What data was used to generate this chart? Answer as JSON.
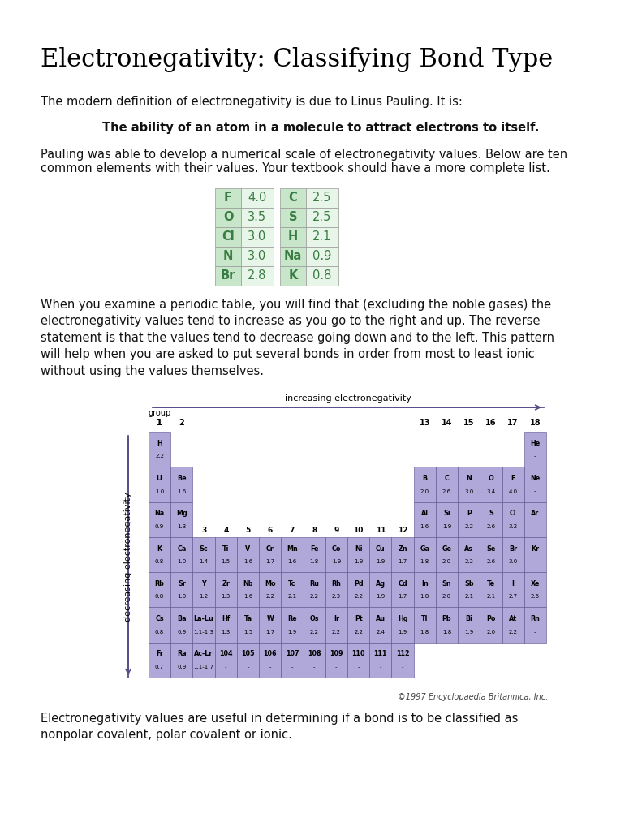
{
  "title": "Electronegativity: Classifying Bond Type",
  "para1": "The modern definition of electronegativity is due to Linus Pauling. It is:",
  "bold_line": "The ability of an atom in a molecule to attract electrons to itself.",
  "para2": "Pauling was able to develop a numerical scale of electronegativity values. Below are ten\ncommon elements with their values. Your textbook should have a more complete list.",
  "table_elements_left": [
    "F",
    "O",
    "Cl",
    "N",
    "Br"
  ],
  "table_values_left": [
    "4.0",
    "3.5",
    "3.0",
    "3.0",
    "2.8"
  ],
  "table_elements_right": [
    "C",
    "S",
    "H",
    "Na",
    "K"
  ],
  "table_values_right": [
    "2.5",
    "2.5",
    "2.1",
    "0.9",
    "0.8"
  ],
  "para3": "When you examine a periodic table, you will find that (excluding the noble gases) the\nelectronegativity values tend to increase as you go to the right and up. The reverse\nstatement is that the values tend to decrease going down and to the left. This pattern\nwill help when you are asked to put several bonds in order from most to least ionic\nwithout using the values themselves.",
  "para4": "Electronegativity values are useful in determining if a bond is to be classified as\nnonpolar covalent, polar covalent or ionic.",
  "green_color": "#3a7d44",
  "table_bg": "#e8f5e9",
  "table_elem_bg": "#c8e6c9",
  "white_bg": "#ffffff",
  "black": "#000000",
  "text_color": "#111111",
  "copyright": "©1997 Encyclopaedia Britannica, Inc.",
  "purple_fill": "#b0a8d8",
  "purple_border": "#5a4e8a",
  "arrow_color": "#5a4e8a",
  "elements": [
    [
      "H",
      "2.2",
      0,
      0
    ],
    [
      "He",
      "-",
      17,
      0
    ],
    [
      "Li",
      "1.0",
      0,
      1
    ],
    [
      "Be",
      "1.6",
      1,
      1
    ],
    [
      "B",
      "2.0",
      12,
      1
    ],
    [
      "C",
      "2.6",
      13,
      1
    ],
    [
      "N",
      "3.0",
      14,
      1
    ],
    [
      "O",
      "3.4",
      15,
      1
    ],
    [
      "F",
      "4.0",
      16,
      1
    ],
    [
      "Ne",
      "-",
      17,
      1
    ],
    [
      "Na",
      "0.9",
      0,
      2
    ],
    [
      "Mg",
      "1.3",
      1,
      2
    ],
    [
      "Al",
      "1.6",
      12,
      2
    ],
    [
      "Si",
      "1.9",
      13,
      2
    ],
    [
      "P",
      "2.2",
      14,
      2
    ],
    [
      "S",
      "2.6",
      15,
      2
    ],
    [
      "Cl",
      "3.2",
      16,
      2
    ],
    [
      "Ar",
      "-",
      17,
      2
    ],
    [
      "K",
      "0.8",
      0,
      3
    ],
    [
      "Ca",
      "1.0",
      1,
      3
    ],
    [
      "Sc",
      "1.4",
      2,
      3
    ],
    [
      "Ti",
      "1.5",
      3,
      3
    ],
    [
      "V",
      "1.6",
      4,
      3
    ],
    [
      "Cr",
      "1.7",
      5,
      3
    ],
    [
      "Mn",
      "1.6",
      6,
      3
    ],
    [
      "Fe",
      "1.8",
      7,
      3
    ],
    [
      "Co",
      "1.9",
      8,
      3
    ],
    [
      "Ni",
      "1.9",
      9,
      3
    ],
    [
      "Cu",
      "1.9",
      10,
      3
    ],
    [
      "Zn",
      "1.7",
      11,
      3
    ],
    [
      "Ga",
      "1.8",
      12,
      3
    ],
    [
      "Ge",
      "2.0",
      13,
      3
    ],
    [
      "As",
      "2.2",
      14,
      3
    ],
    [
      "Se",
      "2.6",
      15,
      3
    ],
    [
      "Br",
      "3.0",
      16,
      3
    ],
    [
      "Kr",
      "-",
      17,
      3
    ],
    [
      "Rb",
      "0.8",
      0,
      4
    ],
    [
      "Sr",
      "1.0",
      1,
      4
    ],
    [
      "Y",
      "1.2",
      2,
      4
    ],
    [
      "Zr",
      "1.3",
      3,
      4
    ],
    [
      "Nb",
      "1.6",
      4,
      4
    ],
    [
      "Mo",
      "2.2",
      5,
      4
    ],
    [
      "Tc",
      "2.1",
      6,
      4
    ],
    [
      "Ru",
      "2.2",
      7,
      4
    ],
    [
      "Rh",
      "2.3",
      8,
      4
    ],
    [
      "Pd",
      "2.2",
      9,
      4
    ],
    [
      "Ag",
      "1.9",
      10,
      4
    ],
    [
      "Cd",
      "1.7",
      11,
      4
    ],
    [
      "In",
      "1.8",
      12,
      4
    ],
    [
      "Sn",
      "2.0",
      13,
      4
    ],
    [
      "Sb",
      "2.1",
      14,
      4
    ],
    [
      "Te",
      "2.1",
      15,
      4
    ],
    [
      "I",
      "2.7",
      16,
      4
    ],
    [
      "Xe",
      "2.6",
      17,
      4
    ],
    [
      "Cs",
      "0.8",
      0,
      5
    ],
    [
      "Ba",
      "0.9",
      1,
      5
    ],
    [
      "La-Lu",
      "1.1-1.3",
      2,
      5
    ],
    [
      "Hf",
      "1.3",
      3,
      5
    ],
    [
      "Ta",
      "1.5",
      4,
      5
    ],
    [
      "W",
      "1.7",
      5,
      5
    ],
    [
      "Re",
      "1.9",
      6,
      5
    ],
    [
      "Os",
      "2.2",
      7,
      5
    ],
    [
      "Ir",
      "2.2",
      8,
      5
    ],
    [
      "Pt",
      "2.2",
      9,
      5
    ],
    [
      "Au",
      "2.4",
      10,
      5
    ],
    [
      "Hg",
      "1.9",
      11,
      5
    ],
    [
      "Tl",
      "1.8",
      12,
      5
    ],
    [
      "Pb",
      "1.8",
      13,
      5
    ],
    [
      "Bi",
      "1.9",
      14,
      5
    ],
    [
      "Po",
      "2.0",
      15,
      5
    ],
    [
      "At",
      "2.2",
      16,
      5
    ],
    [
      "Rn",
      "-",
      17,
      5
    ],
    [
      "Fr",
      "0.7",
      0,
      6
    ],
    [
      "Ra",
      "0.9",
      1,
      6
    ],
    [
      "Ac-Lr",
      "1.1-1.7",
      2,
      6
    ],
    [
      "104",
      "-",
      3,
      6
    ],
    [
      "105",
      "-",
      4,
      6
    ],
    [
      "106",
      "-",
      5,
      6
    ],
    [
      "107",
      "-",
      6,
      6
    ],
    [
      "108",
      "-",
      7,
      6
    ],
    [
      "109",
      "-",
      8,
      6
    ],
    [
      "110",
      "-",
      9,
      6
    ],
    [
      "111",
      "-",
      10,
      6
    ],
    [
      "112",
      "-",
      11,
      6
    ]
  ],
  "group_headers_outer": {
    "0": "1",
    "1": "2",
    "12": "13",
    "13": "14",
    "14": "15",
    "15": "16",
    "16": "17",
    "17": "18"
  },
  "group_headers_inner": {
    "2": "3",
    "3": "4",
    "4": "5",
    "5": "6",
    "6": "7",
    "7": "8",
    "8": "9",
    "9": "10",
    "10": "11",
    "11": "12"
  }
}
